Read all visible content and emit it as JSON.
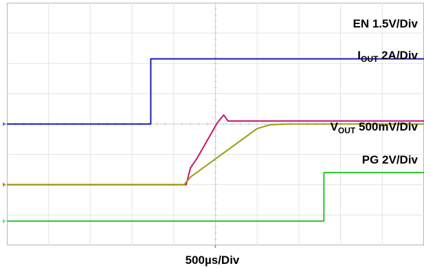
{
  "chart_data": {
    "type": "line",
    "title": "",
    "xlabel": "500µs/Div",
    "ylabel": "",
    "grid": true,
    "x_divisions": 10,
    "y_divisions": 8,
    "x_unit": "div",
    "x_range": [
      0,
      10
    ],
    "labels": {
      "en": {
        "main": "EN 1.5V/Div"
      },
      "iout": {
        "pre": "I",
        "sub": "OUT",
        "post": " 2A/Div"
      },
      "vout": {
        "pre": "V",
        "sub": "OUT",
        "post": " 500mV/Div"
      },
      "pg": {
        "main": "PG 2V/Div"
      }
    },
    "series": [
      {
        "name": "EN",
        "color": "#1a1ab4",
        "baseline_div": 4.0,
        "x": [
          0,
          3.45,
          3.45,
          10
        ],
        "y": [
          0,
          0,
          2.15,
          2.15
        ]
      },
      {
        "name": "IOUT",
        "color": "#c8116e",
        "baseline_div": 2.0,
        "x": [
          0,
          4.3,
          4.4,
          4.55,
          5.05,
          5.2,
          5.3,
          10
        ],
        "y": [
          0,
          0,
          0.55,
          0.85,
          2.05,
          2.3,
          2.1,
          2.1
        ]
      },
      {
        "name": "VOUT",
        "color": "#9a9a10",
        "baseline_div": 2.0,
        "x": [
          0,
          4.25,
          4.4,
          5.5,
          6.0,
          6.3,
          6.7,
          10
        ],
        "y": [
          0,
          0,
          0.25,
          1.35,
          1.85,
          1.97,
          2.0,
          2.0
        ]
      },
      {
        "name": "PG",
        "color": "#22c822",
        "baseline_div": 0.8,
        "x": [
          0,
          7.6,
          7.6,
          10
        ],
        "y": [
          0,
          0,
          1.6,
          1.6
        ]
      }
    ]
  }
}
